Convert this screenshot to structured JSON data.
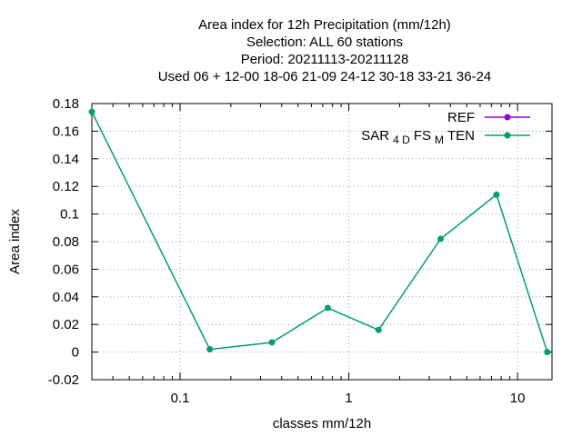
{
  "chart_data": {
    "type": "line",
    "title_lines": [
      "Area index  for 12h Precipitation (mm/12h)",
      "Selection: ALL     60 stations",
      "Period: 20211113-20211128",
      "Used  06 + 12-00 18-06 21-09 24-12 30-18 33-21 36-24"
    ],
    "xlabel": "classes mm/12h",
    "ylabel": "Area index",
    "x_scale": "log",
    "xlim": [
      0.03,
      16
    ],
    "ylim": [
      -0.02,
      0.18
    ],
    "x_ticks": [
      {
        "value": 0.1,
        "label": "0.1"
      },
      {
        "value": 1,
        "label": "1"
      },
      {
        "value": 10,
        "label": "10"
      }
    ],
    "y_ticks": [
      {
        "value": -0.02,
        "label": "-0.02"
      },
      {
        "value": 0,
        "label": "0"
      },
      {
        "value": 0.02,
        "label": "0.02"
      },
      {
        "value": 0.04,
        "label": "0.04"
      },
      {
        "value": 0.06,
        "label": "0.06"
      },
      {
        "value": 0.08,
        "label": "0.08"
      },
      {
        "value": 0.1,
        "label": "0.1"
      },
      {
        "value": 0.12,
        "label": "0.12"
      },
      {
        "value": 0.14,
        "label": "0.14"
      },
      {
        "value": 0.16,
        "label": "0.16"
      },
      {
        "value": 0.18,
        "label": "0.18"
      }
    ],
    "grid": true,
    "legend_position": "top-right",
    "series": [
      {
        "name": "REF",
        "color": "#9400d3",
        "x": [],
        "y": []
      },
      {
        "name": "SAR_4D FS_M TEN",
        "legend_parts": [
          {
            "text": "SAR",
            "sub": false
          },
          {
            "text": "4 D",
            "sub": true
          },
          {
            "text": "FS",
            "sub": false
          },
          {
            "text": "M",
            "sub": true
          },
          {
            "text": "TEN",
            "sub": false
          }
        ],
        "color": "#009e73",
        "x": [
          0.03,
          0.15,
          0.35,
          0.75,
          1.5,
          3.5,
          7.5,
          15
        ],
        "y": [
          0.174,
          0.002,
          0.007,
          0.032,
          0.016,
          0.082,
          0.114,
          0.0
        ]
      }
    ]
  }
}
